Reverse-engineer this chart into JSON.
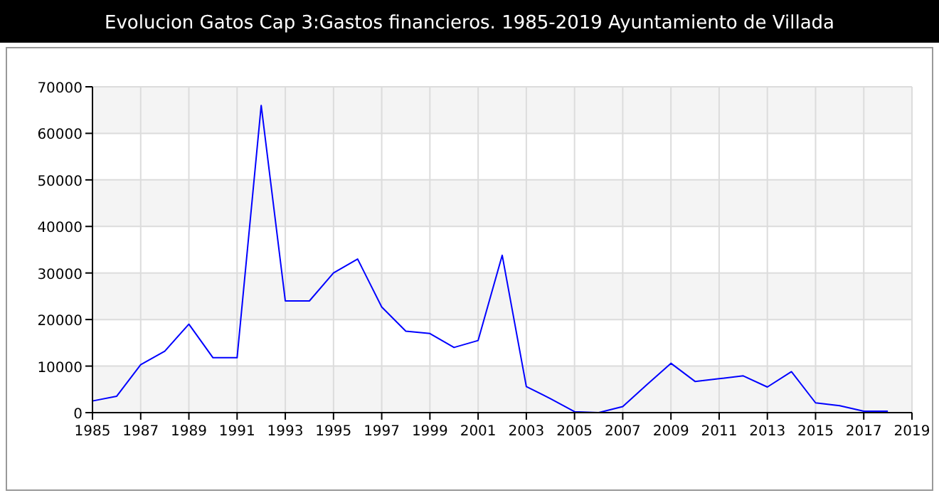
{
  "chart_data": {
    "type": "line",
    "title": "Evolucion Gatos Cap 3:Gastos financieros. 1985-2019 Ayuntamiento de Villada",
    "x": [
      1985,
      1986,
      1987,
      1988,
      1989,
      1990,
      1991,
      1992,
      1993,
      1994,
      1995,
      1996,
      1997,
      1998,
      1999,
      2000,
      2001,
      2002,
      2003,
      2004,
      2005,
      2006,
      2007,
      2008,
      2009,
      2010,
      2011,
      2012,
      2013,
      2014,
      2015,
      2016,
      2017,
      2018
    ],
    "series": [
      {
        "color": "#0000ff",
        "values": [
          2500,
          3500,
          10300,
          13200,
          19000,
          11800,
          11800,
          66000,
          24000,
          24000,
          30000,
          33000,
          22700,
          17500,
          17000,
          14000,
          15500,
          33800,
          5600,
          3000,
          200,
          0,
          1300,
          6000,
          10600,
          6700,
          7300,
          7900,
          5500,
          8800,
          2100,
          1500,
          300,
          300
        ]
      }
    ],
    "xlim": [
      1985,
      2019
    ],
    "xticks": [
      1985,
      1987,
      1989,
      1991,
      1993,
      1995,
      1997,
      1999,
      2001,
      2003,
      2005,
      2007,
      2009,
      2011,
      2013,
      2015,
      2017,
      2019
    ],
    "ylim": [
      0,
      70000
    ],
    "yticks": [
      0,
      10000,
      20000,
      30000,
      40000,
      50000,
      60000,
      70000
    ],
    "grid": true
  }
}
